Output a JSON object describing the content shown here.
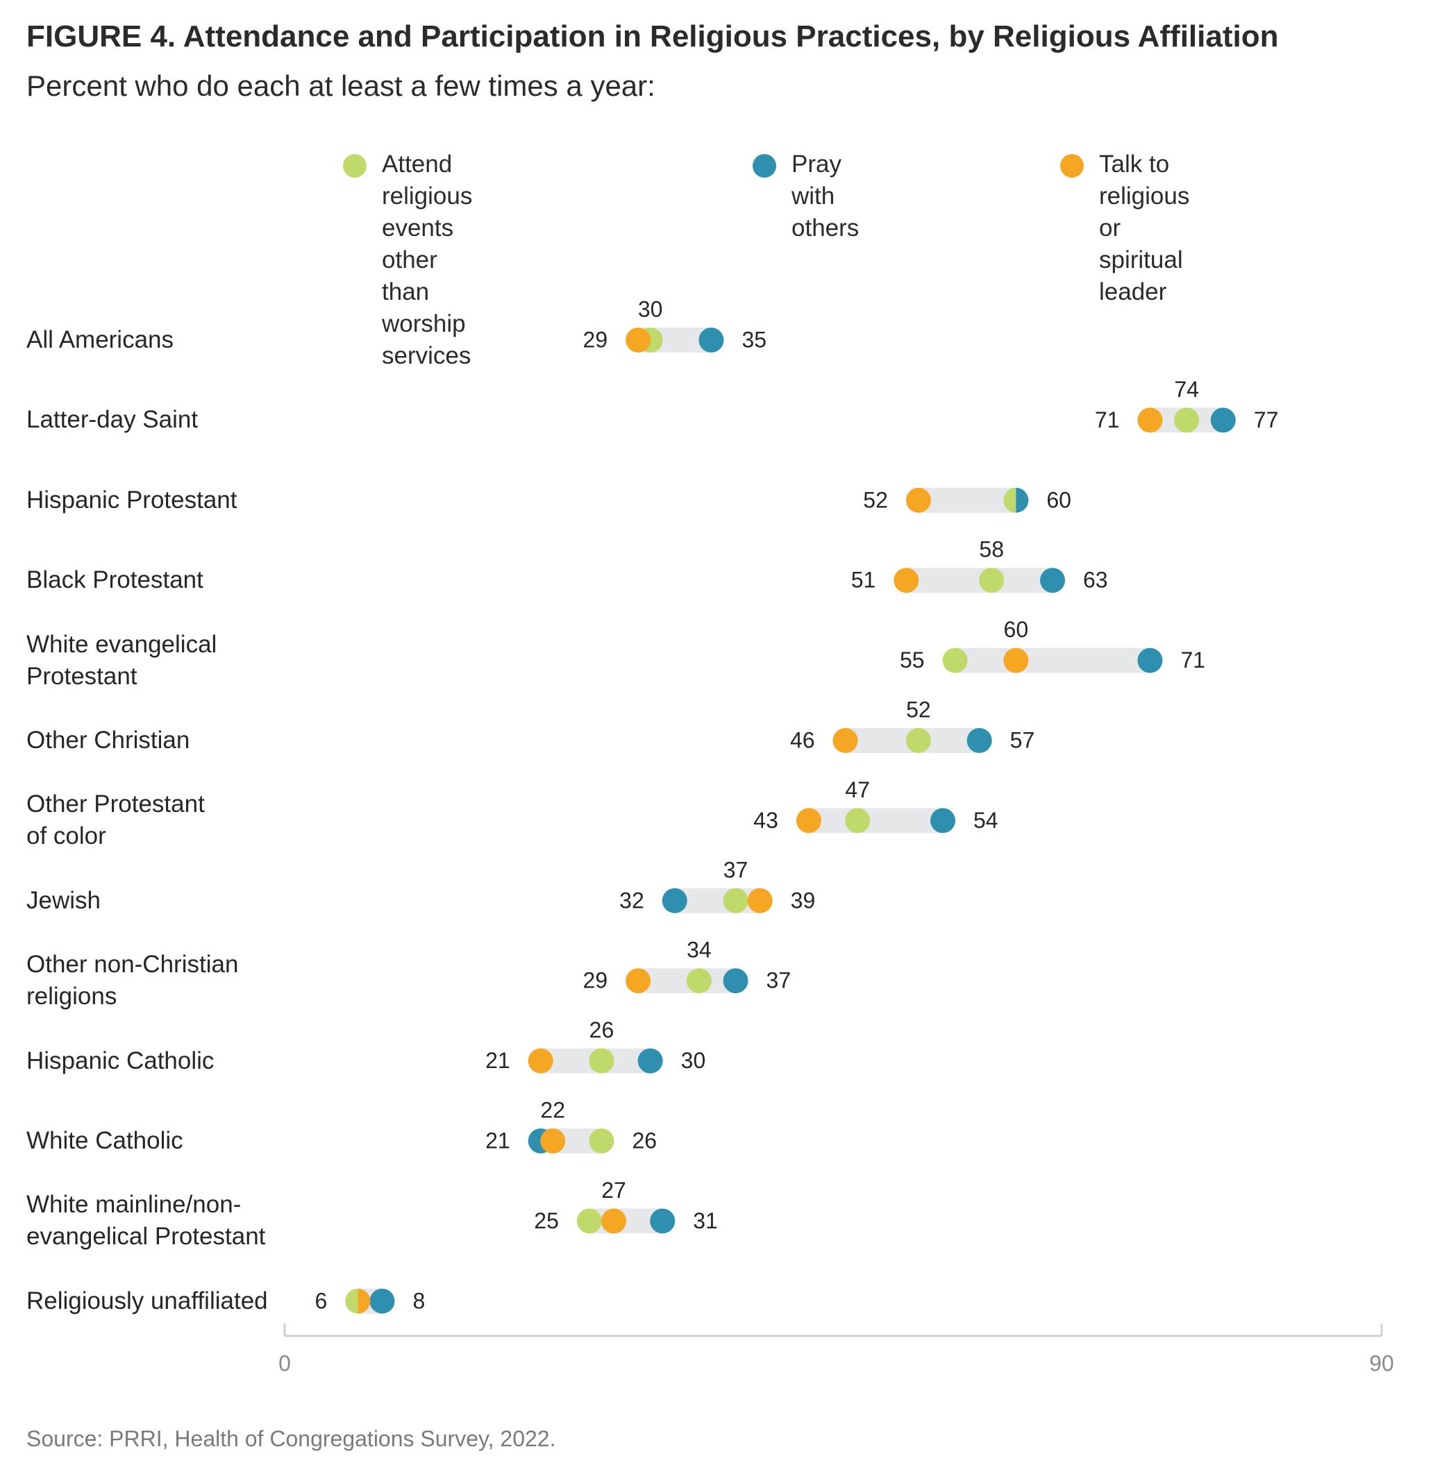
{
  "title": "FIGURE 4.  Attendance and Participation in Religious Practices, by Religious Affiliation",
  "subtitle": "Percent who do each at least a few times a year:",
  "source": "Source: PRRI, Health of Congregations Survey, 2022.",
  "colors": {
    "attend": "#bfd96b",
    "pray": "#2e8fae",
    "talk": "#f5a623",
    "band": "#e6e7e8",
    "axis": "#cfd0d2",
    "axis_text": "#8a8a8a"
  },
  "chart_data": {
    "type": "dot",
    "title": "FIGURE 4.  Attendance and Participation in Religious Practices, by Religious Affiliation",
    "subtitle": "Percent who do each at least a few times a year:",
    "xlim": [
      0,
      90
    ],
    "x_ticks": [
      "0",
      "90"
    ],
    "grid": false,
    "legend_position": "top",
    "series": [
      {
        "key": "attend",
        "name": "Attend religious events\nother than worship services"
      },
      {
        "key": "pray",
        "name": "Pray with others"
      },
      {
        "key": "talk",
        "name": "Talk to religious or\nspiritual leader"
      }
    ],
    "rows": [
      {
        "label": "All Americans",
        "attend": 30,
        "pray": 35,
        "talk": 29
      },
      {
        "label": "Latter-day Saint",
        "attend": 74,
        "pray": 77,
        "talk": 71
      },
      {
        "label": "Hispanic Protestant",
        "attend": 60,
        "pray": 60,
        "talk": 52
      },
      {
        "label": "Black Protestant",
        "attend": 58,
        "pray": 63,
        "talk": 51
      },
      {
        "label": "White evangelical\nProtestant",
        "attend": 55,
        "pray": 71,
        "talk": 60
      },
      {
        "label": "Other Christian",
        "attend": 52,
        "pray": 57,
        "talk": 46
      },
      {
        "label": "Other Protestant\nof color",
        "attend": 47,
        "pray": 54,
        "talk": 43
      },
      {
        "label": "Jewish",
        "attend": 37,
        "pray": 32,
        "talk": 39
      },
      {
        "label": "Other non-Christian\nreligions",
        "attend": 34,
        "pray": 37,
        "talk": 29
      },
      {
        "label": "Hispanic Catholic",
        "attend": 26,
        "pray": 30,
        "talk": 21
      },
      {
        "label": "White Catholic",
        "attend": 26,
        "pray": 21,
        "talk": 22
      },
      {
        "label": "White mainline/non-\nevangelical Protestant",
        "attend": 25,
        "pray": 31,
        "talk": 27
      },
      {
        "label": "Religiously unaffiliated",
        "attend": 6,
        "pray": 8,
        "talk": 6
      }
    ],
    "value_labels": [
      {
        "left": "29",
        "top": "30",
        "right": "35"
      },
      {
        "left": "71",
        "top": "74",
        "right": "77"
      },
      {
        "left": "52",
        "top": "",
        "right": "60"
      },
      {
        "left": "51",
        "top": "58",
        "right": "63"
      },
      {
        "left": "55",
        "top": "60",
        "right": "71"
      },
      {
        "left": "46",
        "top": "52",
        "right": "57"
      },
      {
        "left": "43",
        "top": "47",
        "right": "54"
      },
      {
        "left": "32",
        "top": "37",
        "right": "39"
      },
      {
        "left": "29",
        "top": "34",
        "right": "37"
      },
      {
        "left": "21",
        "top": "26",
        "right": "30"
      },
      {
        "left": "21",
        "top": "22",
        "right": "26"
      },
      {
        "left": "25",
        "top": "27",
        "right": "31"
      },
      {
        "left": "6",
        "top": "",
        "right": "8"
      }
    ]
  }
}
